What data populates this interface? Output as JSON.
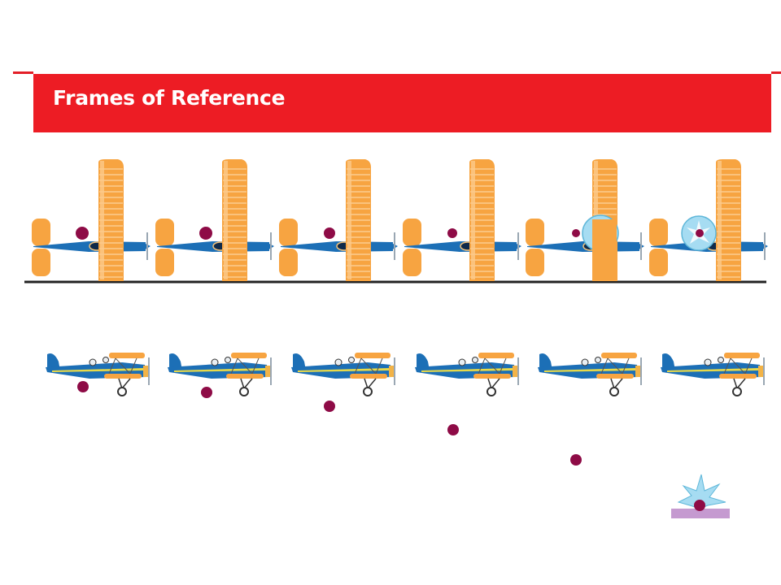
{
  "title": "Frames of Reference",
  "colors": {
    "banner": "#ed1c24",
    "wing_orange": "#f7a441",
    "fuselage_blue": "#1c6fb6",
    "package": "#8e0b46",
    "ground": "#222222",
    "splash": "#a6dcf2",
    "landing_pad": "#c59ad0"
  },
  "icons": [
    "biplane-top-view",
    "biplane-side-view",
    "package-dot",
    "impact-splash"
  ],
  "frames": {
    "top_row_count": 6,
    "bottom_row_count": 6
  }
}
